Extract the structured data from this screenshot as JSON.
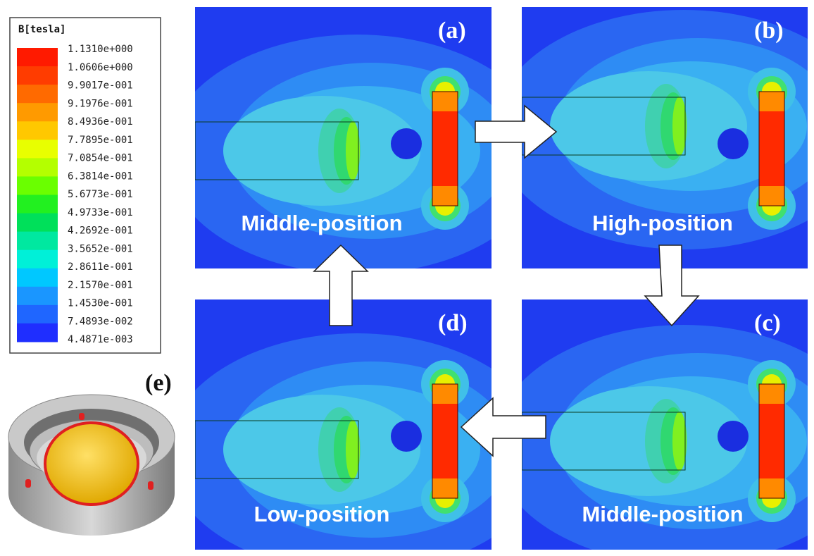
{
  "legend": {
    "title": "B[tesla]",
    "labels": [
      "1.1310e+000",
      "1.0606e+000",
      "9.9017e-001",
      "9.1976e-001",
      "8.4936e-001",
      "7.7895e-001",
      "7.0854e-001",
      "6.3814e-001",
      "5.6773e-001",
      "4.9733e-001",
      "4.2692e-001",
      "3.5652e-001",
      "2.8611e-001",
      "2.1570e-001",
      "1.4530e-001",
      "7.4893e-002",
      "4.4871e-003"
    ]
  },
  "panels": [
    {
      "tag": "(a)",
      "caption": "Middle-position"
    },
    {
      "tag": "(b)",
      "caption": "High-position"
    },
    {
      "tag": "(c)",
      "caption": "Middle-position"
    },
    {
      "tag": "(d)",
      "caption": "Low-position"
    }
  ],
  "inset": {
    "tag": "(e)"
  }
}
